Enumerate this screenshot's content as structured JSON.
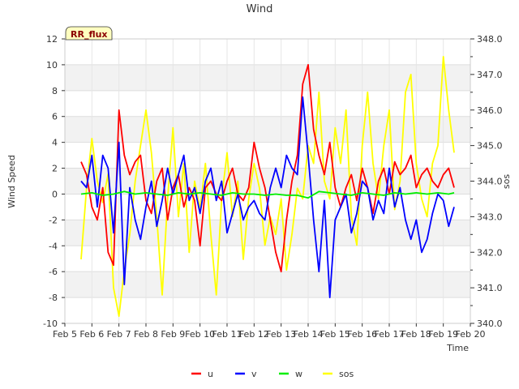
{
  "chart_data": {
    "type": "line",
    "title": "Wind",
    "xlabel": "Time",
    "ylabel": "Wind Speed",
    "y2label": "sos",
    "badge": "RR_flux",
    "xlim": [
      5,
      20
    ],
    "ylim": [
      -10,
      12
    ],
    "y2lim": [
      340.0,
      348.0
    ],
    "x_ticks": [
      {
        "v": 5,
        "label": "Feb 5"
      },
      {
        "v": 6,
        "label": "Feb 6"
      },
      {
        "v": 7,
        "label": "Feb 7"
      },
      {
        "v": 8,
        "label": "Feb 8"
      },
      {
        "v": 9,
        "label": "Feb 9"
      },
      {
        "v": 10,
        "label": "Feb 10"
      },
      {
        "v": 11,
        "label": "Feb 11"
      },
      {
        "v": 12,
        "label": "Feb 12"
      },
      {
        "v": 13,
        "label": "Feb 13"
      },
      {
        "v": 14,
        "label": "Feb 14"
      },
      {
        "v": 15,
        "label": "Feb 15"
      },
      {
        "v": 16,
        "label": "Feb 16"
      },
      {
        "v": 17,
        "label": "Feb 17"
      },
      {
        "v": 18,
        "label": "Feb 18"
      },
      {
        "v": 19,
        "label": "Feb 19"
      },
      {
        "v": 20,
        "label": "Feb 20"
      }
    ],
    "y_ticks": [
      {
        "v": -10,
        "label": "-10"
      },
      {
        "v": -8,
        "label": "-8"
      },
      {
        "v": -6,
        "label": "-6"
      },
      {
        "v": -4,
        "label": "-4"
      },
      {
        "v": -2,
        "label": "-2"
      },
      {
        "v": 0,
        "label": "0"
      },
      {
        "v": 2,
        "label": "2"
      },
      {
        "v": 4,
        "label": "4"
      },
      {
        "v": 6,
        "label": "6"
      },
      {
        "v": 8,
        "label": "8"
      },
      {
        "v": 10,
        "label": "10"
      },
      {
        "v": 12,
        "label": "12"
      }
    ],
    "y2_ticks": [
      {
        "v": 340.0,
        "label": "340.0"
      },
      {
        "v": 341.0,
        "label": "341.0"
      },
      {
        "v": 342.0,
        "label": "342.0"
      },
      {
        "v": 343.0,
        "label": "343.0"
      },
      {
        "v": 344.0,
        "label": "344.0"
      },
      {
        "v": 345.0,
        "label": "345.0"
      },
      {
        "v": 346.0,
        "label": "346.0"
      },
      {
        "v": 347.0,
        "label": "347.0"
      },
      {
        "v": 348.0,
        "label": "348.0"
      }
    ],
    "grid": true,
    "legend_position": "bottom-center",
    "series": [
      {
        "name": "u",
        "color": "#ff0000",
        "axis": "left",
        "x": [
          5.6,
          5.8,
          6.0,
          6.2,
          6.4,
          6.6,
          6.8,
          7.0,
          7.2,
          7.4,
          7.6,
          7.8,
          8.0,
          8.2,
          8.4,
          8.6,
          8.8,
          9.0,
          9.2,
          9.4,
          9.6,
          9.8,
          10.0,
          10.2,
          10.4,
          10.6,
          10.8,
          11.0,
          11.2,
          11.4,
          11.6,
          11.8,
          12.0,
          12.2,
          12.4,
          12.6,
          12.8,
          13.0,
          13.2,
          13.4,
          13.6,
          13.8,
          14.0,
          14.2,
          14.4,
          14.6,
          14.8,
          15.0,
          15.2,
          15.4,
          15.6,
          15.8,
          16.0,
          16.2,
          16.4,
          16.6,
          16.8,
          17.0,
          17.2,
          17.4,
          17.6,
          17.8,
          18.0,
          18.2,
          18.4,
          18.6,
          18.8,
          19.0,
          19.2,
          19.4
        ],
        "y": [
          2.5,
          1.5,
          -1.0,
          -2.0,
          0.5,
          -4.5,
          -5.5,
          6.5,
          3.0,
          1.5,
          2.5,
          3.0,
          -0.5,
          -1.5,
          1.0,
          2.0,
          -2.0,
          0.5,
          1.5,
          -1.0,
          0.5,
          -0.5,
          -4.0,
          0.5,
          1.0,
          0.0,
          -0.5,
          1.0,
          2.0,
          0.0,
          -0.5,
          0.5,
          4.0,
          2.0,
          0.5,
          -2.0,
          -4.5,
          -6.0,
          -2.0,
          1.0,
          3.0,
          8.5,
          10.0,
          5.0,
          3.0,
          1.5,
          4.0,
          0.5,
          -1.0,
          0.5,
          1.5,
          -0.5,
          2.0,
          0.5,
          -1.5,
          1.0,
          2.0,
          0.0,
          2.5,
          1.5,
          2.0,
          3.0,
          0.5,
          1.5,
          2.0,
          1.0,
          0.5,
          1.5,
          2.0,
          0.5
        ]
      },
      {
        "name": "v",
        "color": "#0000ff",
        "axis": "left",
        "x": [
          5.6,
          5.8,
          6.0,
          6.2,
          6.4,
          6.6,
          6.8,
          7.0,
          7.2,
          7.4,
          7.6,
          7.8,
          8.0,
          8.2,
          8.4,
          8.6,
          8.8,
          9.0,
          9.2,
          9.4,
          9.6,
          9.8,
          10.0,
          10.2,
          10.4,
          10.6,
          10.8,
          11.0,
          11.2,
          11.4,
          11.6,
          11.8,
          12.0,
          12.2,
          12.4,
          12.6,
          12.8,
          13.0,
          13.2,
          13.4,
          13.6,
          13.8,
          14.0,
          14.2,
          14.4,
          14.6,
          14.8,
          15.0,
          15.2,
          15.4,
          15.6,
          15.8,
          16.0,
          16.2,
          16.4,
          16.6,
          16.8,
          17.0,
          17.2,
          17.4,
          17.6,
          17.8,
          18.0,
          18.2,
          18.4,
          18.6,
          18.8,
          19.0,
          19.2,
          19.4
        ],
        "y": [
          1.0,
          0.5,
          3.0,
          -1.0,
          3.0,
          2.0,
          -3.0,
          4.0,
          -7.0,
          0.5,
          -2.0,
          -3.5,
          -1.0,
          1.0,
          -2.5,
          -0.5,
          2.0,
          0.0,
          1.5,
          3.0,
          -0.5,
          0.5,
          -1.5,
          1.0,
          2.0,
          -0.5,
          1.0,
          -3.0,
          -1.5,
          0.0,
          -2.0,
          -1.0,
          -0.5,
          -1.5,
          -2.0,
          0.5,
          2.0,
          0.5,
          3.0,
          2.0,
          1.5,
          7.5,
          3.0,
          -2.0,
          -6.0,
          -0.5,
          -8.0,
          -2.0,
          -1.0,
          0.0,
          -3.0,
          -1.5,
          1.0,
          0.5,
          -2.0,
          -0.5,
          -1.5,
          2.0,
          -1.0,
          0.5,
          -2.0,
          -3.5,
          -2.0,
          -4.5,
          -3.5,
          -1.5,
          0.0,
          -0.5,
          -2.5,
          -1.0
        ]
      },
      {
        "name": "w",
        "color": "#00ee00",
        "axis": "left",
        "x": [
          5.6,
          6.0,
          6.4,
          6.8,
          7.2,
          7.6,
          8.0,
          8.4,
          8.8,
          9.2,
          9.6,
          10.0,
          10.4,
          10.8,
          11.2,
          11.6,
          12.0,
          12.4,
          12.8,
          13.2,
          13.6,
          14.0,
          14.4,
          14.8,
          15.2,
          15.6,
          16.0,
          16.4,
          16.8,
          17.2,
          17.6,
          18.0,
          18.4,
          18.8,
          19.2,
          19.4
        ],
        "y": [
          0.0,
          0.1,
          -0.1,
          0.0,
          0.2,
          0.0,
          0.1,
          0.0,
          -0.1,
          0.1,
          0.0,
          0.1,
          0.0,
          -0.1,
          0.1,
          0.0,
          0.0,
          -0.1,
          0.0,
          -0.1,
          -0.1,
          -0.3,
          0.2,
          0.1,
          0.0,
          -0.1,
          0.1,
          0.0,
          -0.1,
          0.1,
          0.0,
          0.1,
          0.0,
          0.1,
          0.0,
          0.1
        ]
      },
      {
        "name": "sos",
        "color": "#ffff00",
        "axis": "right",
        "x": [
          5.6,
          5.8,
          6.0,
          6.2,
          6.4,
          6.6,
          6.8,
          7.0,
          7.2,
          7.4,
          7.6,
          7.8,
          8.0,
          8.2,
          8.4,
          8.6,
          8.8,
          9.0,
          9.2,
          9.4,
          9.6,
          9.8,
          10.0,
          10.2,
          10.4,
          10.6,
          10.8,
          11.0,
          11.2,
          11.4,
          11.6,
          11.8,
          12.0,
          12.2,
          12.4,
          12.6,
          12.8,
          13.0,
          13.2,
          13.4,
          13.6,
          13.8,
          14.0,
          14.2,
          14.4,
          14.6,
          14.8,
          15.0,
          15.2,
          15.4,
          15.6,
          15.8,
          16.0,
          16.2,
          16.4,
          16.6,
          16.8,
          17.0,
          17.2,
          17.4,
          17.6,
          17.8,
          18.0,
          18.2,
          18.4,
          18.6,
          18.8,
          19.0,
          19.2,
          19.4
        ],
        "y": [
          341.8,
          343.8,
          345.2,
          344.0,
          343.4,
          344.2,
          341.0,
          340.2,
          341.5,
          342.5,
          344.0,
          345.0,
          346.0,
          344.8,
          343.0,
          340.8,
          343.5,
          345.5,
          343.0,
          344.5,
          342.0,
          344.0,
          343.2,
          344.5,
          342.5,
          340.8,
          343.5,
          344.8,
          343.0,
          344.0,
          341.8,
          343.5,
          344.5,
          343.8,
          342.2,
          343.0,
          342.5,
          343.5,
          341.5,
          342.5,
          343.8,
          343.5,
          345.0,
          344.5,
          346.5,
          344.0,
          343.5,
          345.5,
          344.5,
          346.0,
          343.0,
          342.2,
          345.0,
          346.5,
          344.5,
          343.5,
          345.0,
          346.0,
          343.2,
          344.0,
          346.5,
          347.0,
          344.5,
          343.5,
          343.0,
          344.5,
          345.0,
          347.5,
          346.0,
          344.8
        ]
      }
    ]
  }
}
